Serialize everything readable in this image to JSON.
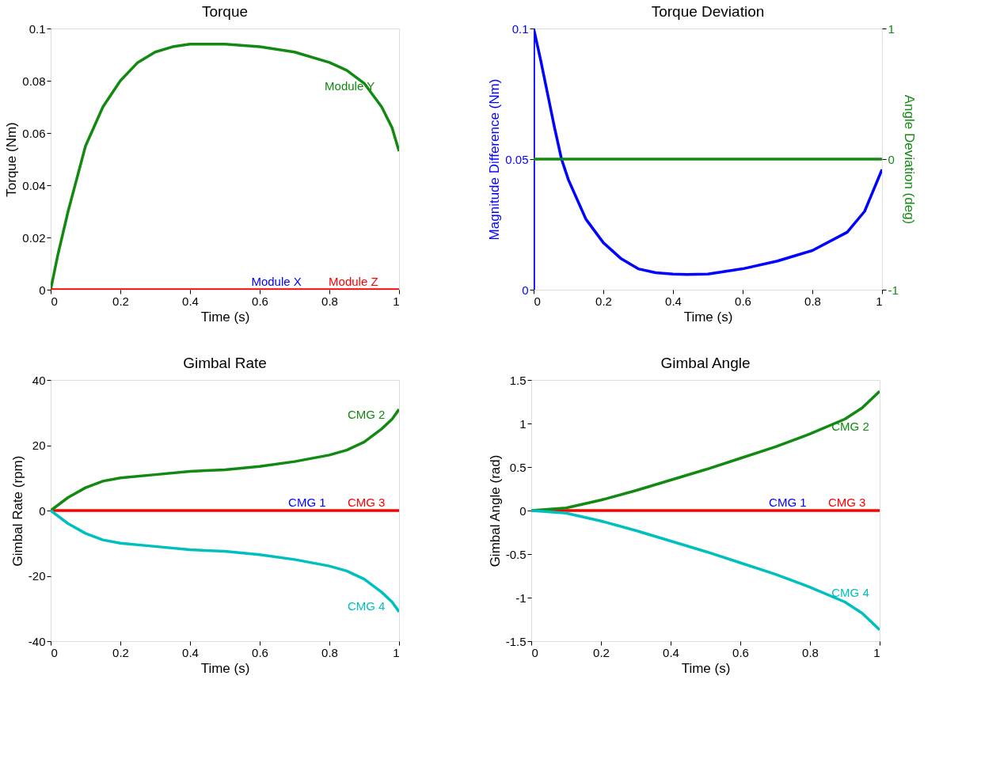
{
  "chart_data": [
    {
      "type": "line",
      "title": "Torque",
      "xlabel": "Time (s)",
      "ylabel": "Torque (Nm)",
      "xlim": [
        0,
        1
      ],
      "xticks": [
        0,
        0.2,
        0.4,
        0.6,
        0.8,
        1
      ],
      "ylim": [
        0,
        0.1
      ],
      "yticks": [
        0,
        0.02,
        0.04,
        0.06,
        0.08,
        0.1
      ],
      "series": [
        {
          "name": "Module Y",
          "color": "#128a12",
          "x": [
            0,
            0.02,
            0.05,
            0.1,
            0.15,
            0.2,
            0.25,
            0.3,
            0.35,
            0.4,
            0.45,
            0.5,
            0.6,
            0.7,
            0.8,
            0.85,
            0.9,
            0.95,
            0.98,
            1
          ],
          "values": [
            0,
            0.013,
            0.03,
            0.055,
            0.07,
            0.08,
            0.087,
            0.091,
            0.093,
            0.094,
            0.094,
            0.094,
            0.093,
            0.091,
            0.087,
            0.084,
            0.079,
            0.07,
            0.062,
            0.053
          ]
        },
        {
          "name": "Module X",
          "color": "#0000ff"
        },
        {
          "name": "Module Z",
          "color": "#ff0000",
          "x": [
            0,
            1
          ],
          "values": [
            0,
            0
          ]
        }
      ]
    },
    {
      "type": "line",
      "title": "Torque Deviation",
      "xlabel": "Time (s)",
      "ylabel": "Magnitude Difference (Nm)",
      "y2label": "Angle Deviation (deg)",
      "xlim": [
        0,
        1
      ],
      "xticks": [
        0,
        0.2,
        0.4,
        0.6,
        0.8,
        1
      ],
      "ylim": [
        0,
        0.1
      ],
      "yticks": [
        0,
        0.05,
        0.1
      ],
      "y2lim": [
        -1,
        1
      ],
      "y2ticks": [
        -1,
        0,
        1
      ],
      "series": [
        {
          "color": "#0000ff",
          "x": [
            0,
            0,
            0.02,
            0.04,
            0.06,
            0.08,
            0.1,
            0.15,
            0.2,
            0.25,
            0.3,
            0.35,
            0.4,
            0.44,
            0.5,
            0.6,
            0.7,
            0.8,
            0.9,
            0.95,
            1
          ],
          "values": [
            0,
            0.1,
            0.088,
            0.075,
            0.062,
            0.05,
            0.042,
            0.027,
            0.018,
            0.012,
            0.008,
            0.0065,
            0.006,
            0.0058,
            0.006,
            0.008,
            0.011,
            0.015,
            0.022,
            0.03,
            0.046
          ]
        },
        {
          "color": "#128a12",
          "axis": "y2",
          "x": [
            0,
            1
          ],
          "values": [
            0,
            0
          ]
        }
      ]
    },
    {
      "type": "line",
      "title": "Gimbal Rate",
      "xlabel": "Time (s)",
      "ylabel": "Gimbal Rate (rpm)",
      "xlim": [
        0,
        1
      ],
      "xticks": [
        0,
        0.2,
        0.4,
        0.6,
        0.8,
        1
      ],
      "ylim": [
        -40,
        40
      ],
      "yticks": [
        -40,
        -20,
        0,
        20,
        40
      ],
      "series": [
        {
          "name": "CMG 1",
          "color": "#0000ff"
        },
        {
          "name": "CMG 3",
          "color": "#ff0000",
          "x": [
            0,
            1
          ],
          "values": [
            0,
            0
          ]
        },
        {
          "name": "CMG 2",
          "color": "#128a12",
          "x": [
            0,
            0.05,
            0.1,
            0.15,
            0.2,
            0.3,
            0.4,
            0.5,
            0.6,
            0.7,
            0.8,
            0.85,
            0.9,
            0.95,
            0.98,
            1
          ],
          "values": [
            0,
            4,
            7,
            9,
            10,
            11,
            12,
            12.5,
            13.5,
            15,
            17,
            18.5,
            21,
            25,
            28,
            31
          ]
        },
        {
          "name": "CMG 4",
          "color": "#00bfbf",
          "x": [
            0,
            0.05,
            0.1,
            0.15,
            0.2,
            0.3,
            0.4,
            0.5,
            0.6,
            0.7,
            0.8,
            0.85,
            0.9,
            0.95,
            0.98,
            1
          ],
          "values": [
            0,
            -4,
            -7,
            -9,
            -10,
            -11,
            -12,
            -12.5,
            -13.5,
            -15,
            -17,
            -18.5,
            -21,
            -25,
            -28,
            -31
          ]
        }
      ]
    },
    {
      "type": "line",
      "title": "Gimbal Angle",
      "xlabel": "Time (s)",
      "ylabel": "Gimbal Angle (rad)",
      "xlim": [
        0,
        1
      ],
      "xticks": [
        0,
        0.2,
        0.4,
        0.6,
        0.8,
        1
      ],
      "ylim": [
        -1.5,
        1.5
      ],
      "yticks": [
        -1.5,
        -1,
        -0.5,
        0,
        0.5,
        1,
        1.5
      ],
      "series": [
        {
          "name": "CMG 1",
          "color": "#0000ff"
        },
        {
          "name": "CMG 3",
          "color": "#ff0000",
          "x": [
            0,
            1
          ],
          "values": [
            0,
            0
          ]
        },
        {
          "name": "CMG 2",
          "color": "#128a12",
          "x": [
            0,
            0.1,
            0.2,
            0.3,
            0.4,
            0.5,
            0.6,
            0.7,
            0.8,
            0.9,
            0.95,
            1
          ],
          "values": [
            0,
            0.03,
            0.12,
            0.23,
            0.35,
            0.47,
            0.6,
            0.73,
            0.88,
            1.05,
            1.18,
            1.37
          ]
        },
        {
          "name": "CMG 4",
          "color": "#00bfbf",
          "x": [
            0,
            0.1,
            0.2,
            0.3,
            0.4,
            0.5,
            0.6,
            0.7,
            0.8,
            0.9,
            0.95,
            1
          ],
          "values": [
            0,
            -0.03,
            -0.12,
            -0.23,
            -0.35,
            -0.47,
            -0.6,
            -0.73,
            -0.88,
            -1.05,
            -1.18,
            -1.37
          ]
        }
      ]
    }
  ]
}
